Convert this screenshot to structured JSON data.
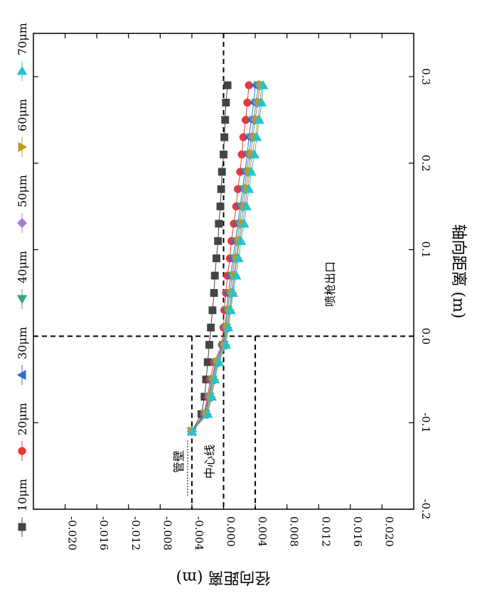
{
  "chart_data": {
    "type": "scatter",
    "orientation": "rotated 90° clockwise (axial axis runs down the right side)",
    "xlabel": "轴向距离 (m)",
    "ylabel": "径向距离 (m)",
    "xlim": [
      -0.2,
      0.35
    ],
    "ylim": [
      -0.024,
      0.024
    ],
    "x_ticks": [
      -0.2,
      -0.1,
      0.0,
      0.1,
      0.2,
      0.3
    ],
    "x_tick_labels": [
      "-0.2",
      "-0.1",
      "0.0",
      "0.1",
      "0.2",
      "0.3"
    ],
    "y_ticks": [
      -0.02,
      -0.016,
      -0.012,
      -0.008,
      -0.004,
      0.0,
      0.004,
      0.008,
      0.012,
      0.016,
      0.02
    ],
    "y_tick_labels": [
      "-0.020",
      "-0.016",
      "-0.012",
      "-0.008",
      "-0.004",
      "0.000",
      "0.004",
      "0.008",
      "0.012",
      "0.016",
      "0.020"
    ],
    "legend_position": "left (along rotated top edge)",
    "grid": false,
    "reference_lines": [
      {
        "orientation": "axial",
        "value": 0.0,
        "range": [
          -0.2,
          0.35
        ],
        "label": "中心线"
      },
      {
        "orientation": "axial",
        "value": -0.004,
        "range": [
          -0.2,
          0.0
        ],
        "label": "管壁"
      },
      {
        "orientation": "axial",
        "value": 0.004,
        "range": [
          -0.2,
          0.0
        ],
        "label": ""
      },
      {
        "orientation": "radial",
        "value": 0.0,
        "label": "喷枪出口"
      }
    ],
    "x": [
      -0.11,
      -0.09,
      -0.07,
      -0.05,
      -0.03,
      -0.01,
      0.01,
      0.03,
      0.05,
      0.07,
      0.09,
      0.11,
      0.13,
      0.15,
      0.17,
      0.19,
      0.21,
      0.23,
      0.25,
      0.27,
      0.29
    ],
    "series": [
      {
        "name": "10μm",
        "color": "#444444",
        "marker": "square",
        "values": [
          -0.004,
          -0.0028,
          -0.0024,
          -0.0022,
          -0.002,
          -0.0018,
          -0.0016,
          -0.0014,
          -0.0012,
          -0.0011,
          -0.0009,
          -0.0007,
          -0.0006,
          -0.0004,
          -0.0003,
          -0.0002,
          0.0,
          0.0001,
          0.0002,
          0.0003,
          0.0005
        ]
      },
      {
        "name": "20μm",
        "color": "#e8383d",
        "marker": "circle",
        "values": [
          -0.004,
          -0.0025,
          -0.002,
          -0.0017,
          -0.0012,
          -0.0002,
          0.0,
          0.0001,
          0.0003,
          0.0005,
          0.0008,
          0.001,
          0.0013,
          0.0016,
          0.0018,
          0.0021,
          0.0023,
          0.0025,
          0.0028,
          0.003,
          0.0032
        ]
      },
      {
        "name": "30μm",
        "color": "#2a6fcb",
        "marker": "triangle-left",
        "values": [
          -0.004,
          -0.0024,
          -0.0019,
          -0.0015,
          -0.001,
          -0.0001,
          0.0002,
          0.0004,
          0.0006,
          0.0009,
          0.0012,
          0.0015,
          0.0018,
          0.0021,
          0.0024,
          0.0027,
          0.003,
          0.0032,
          0.0035,
          0.0038,
          0.004
        ]
      },
      {
        "name": "40μm",
        "color": "#3aa870",
        "marker": "triangle-down",
        "values": [
          -0.004,
          -0.0023,
          -0.0018,
          -0.0014,
          -0.0009,
          0.0,
          0.0003,
          0.0005,
          0.0008,
          0.0011,
          0.0014,
          0.0017,
          0.002,
          0.0023,
          0.0026,
          0.0029,
          0.0032,
          0.0035,
          0.0038,
          0.0041,
          0.0044
        ]
      },
      {
        "name": "50μm",
        "color": "#a97ad6",
        "marker": "diamond",
        "values": [
          -0.004,
          -0.0022,
          -0.0017,
          -0.0013,
          -0.0008,
          0.0001,
          0.0004,
          0.0007,
          0.001,
          0.0013,
          0.0016,
          0.0019,
          0.0022,
          0.0025,
          0.0028,
          0.0031,
          0.0034,
          0.0037,
          0.004,
          0.0043,
          0.0046
        ]
      },
      {
        "name": "60μm",
        "color": "#c19a1c",
        "marker": "triangle-right",
        "values": [
          -0.004,
          -0.0021,
          -0.0016,
          -0.0012,
          -0.0007,
          0.0002,
          0.0005,
          0.0008,
          0.0011,
          0.0014,
          0.0017,
          0.002,
          0.0024,
          0.0027,
          0.003,
          0.0033,
          0.0036,
          0.004,
          0.0043,
          0.0046,
          0.0048
        ]
      },
      {
        "name": "70μm",
        "color": "#26c4c8",
        "marker": "triangle-up",
        "values": [
          -0.004,
          -0.002,
          -0.0015,
          -0.0011,
          -0.0006,
          0.0003,
          0.0006,
          0.0009,
          0.0012,
          0.0016,
          0.0019,
          0.0022,
          0.0026,
          0.0029,
          0.0032,
          0.0035,
          0.0039,
          0.0042,
          0.0045,
          0.0048,
          0.005
        ]
      }
    ]
  }
}
